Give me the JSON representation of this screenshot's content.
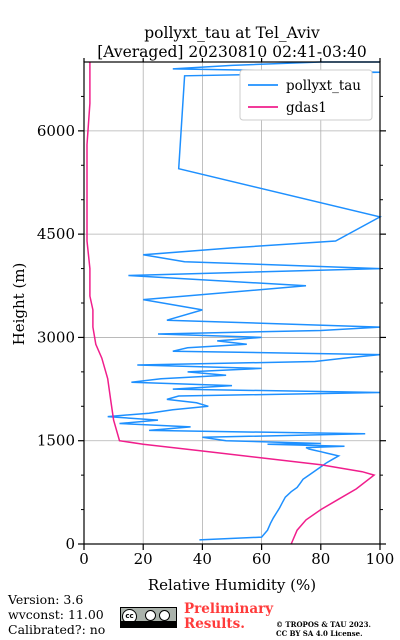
{
  "chart_data": {
    "type": "line",
    "title": "pollyxt_tau at Tel_Aviv",
    "subtitle": "[Averaged] 20230810 02:41-03:40",
    "xlabel": "Relative Humidity (%)",
    "ylabel": "Height (m)",
    "xlim": [
      0,
      100
    ],
    "ylim": [
      0,
      7000
    ],
    "xticks": [
      "0",
      "20",
      "40",
      "60",
      "80",
      "100"
    ],
    "yticks": [
      "0",
      "1500",
      "3000",
      "4500",
      "6000"
    ],
    "grid": true,
    "legend_position": "top-right",
    "series": [
      {
        "name": "pollyxt_tau",
        "color": "#1e90ff",
        "x": [
          39,
          60,
          62,
          63,
          64,
          65,
          66,
          67,
          68,
          70,
          72,
          73,
          74,
          76,
          78,
          80,
          82,
          84,
          86,
          84,
          82,
          80,
          78,
          76,
          75,
          88,
          62,
          80,
          48,
          40,
          95,
          22,
          36,
          12,
          25,
          8,
          22,
          30,
          42,
          38,
          28,
          32,
          100,
          30,
          50,
          16,
          26,
          48,
          35,
          60,
          18,
          78,
          88,
          100,
          30,
          35,
          55,
          45,
          60,
          25,
          80,
          100,
          28,
          40,
          20,
          75,
          15,
          100,
          34,
          20,
          50,
          85,
          100,
          32,
          34,
          100,
          30,
          50,
          80,
          100,
          89,
          100
        ],
        "y": [
          60,
          100,
          200,
          300,
          380,
          450,
          520,
          600,
          680,
          760,
          820,
          880,
          940,
          1000,
          1060,
          1120,
          1180,
          1230,
          1280,
          1300,
          1320,
          1340,
          1360,
          1380,
          1400,
          1420,
          1450,
          1460,
          1500,
          1550,
          1600,
          1650,
          1700,
          1750,
          1800,
          1850,
          1900,
          1950,
          2000,
          2050,
          2100,
          2150,
          2200,
          2250,
          2300,
          2350,
          2400,
          2450,
          2500,
          2550,
          2600,
          2650,
          2700,
          2750,
          2800,
          2850,
          2900,
          2950,
          3000,
          3050,
          3100,
          3150,
          3250,
          3400,
          3550,
          3750,
          3900,
          4000,
          4100,
          4200,
          4300,
          4400,
          4750,
          5450,
          6800,
          6850,
          6900,
          6950,
          7000,
          7000,
          7000,
          7000
        ]
      },
      {
        "name": "gdas1",
        "color": "#f01e8c",
        "x": [
          70,
          72,
          75,
          80,
          86,
          92,
          98,
          94,
          80,
          60,
          40,
          20,
          12,
          10,
          9,
          8,
          6,
          4,
          3,
          3,
          2,
          2,
          1,
          1,
          1,
          1,
          2,
          2
        ],
        "y": [
          0,
          200,
          350,
          500,
          650,
          800,
          1000,
          1050,
          1150,
          1250,
          1350,
          1450,
          1500,
          1800,
          2100,
          2400,
          2700,
          2900,
          3150,
          3400,
          3600,
          4000,
          4400,
          4800,
          5200,
          5800,
          6400,
          7000
        ]
      }
    ]
  },
  "footer": {
    "version": "Version: 3.6",
    "wvconst": "wvconst:  11.00",
    "calibrated": "Calibrated?: no",
    "cc_label": "cc",
    "preliminary_line1": "Preliminary",
    "preliminary_line2": "Results.",
    "license_line1": "© TROPOS & TAU 2023.",
    "license_line2": "CC BY SA 4.0 License."
  }
}
